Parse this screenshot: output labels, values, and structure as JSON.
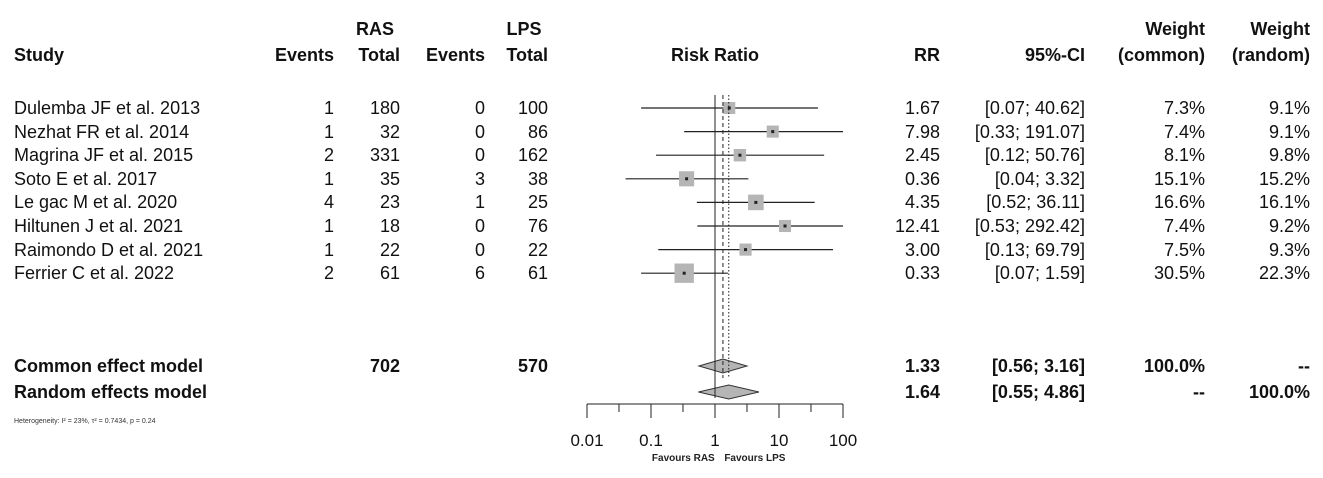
{
  "header": {
    "study": "Study",
    "ras_group": "RAS",
    "lps_group": "LPS",
    "events_label": "Events",
    "total_label": "Total",
    "risk_ratio": "Risk Ratio",
    "rr": "RR",
    "ci": "95%-CI",
    "weight": "Weight",
    "common": "(common)",
    "random": "(random)"
  },
  "chart_data": {
    "type": "forest",
    "xscale": "log",
    "xlim": [
      0.01,
      100
    ],
    "xticks": [
      0.01,
      0.1,
      1,
      10,
      100
    ],
    "xtick_labels": [
      "0.01",
      "0.1",
      "1",
      "10",
      "100"
    ],
    "x_favours_left": "Favours RAS",
    "x_favours_right": "Favours LPS",
    "reference_line": 1,
    "studies": [
      {
        "name": "Dulemba JF et al. 2013",
        "ras_events": "1",
        "ras_total": "180",
        "lps_events": "0",
        "lps_total": "100",
        "rr": 1.67,
        "lo": 0.07,
        "hi": 40.62,
        "rr_text": "1.67",
        "ci_text": "[0.07; 40.62]",
        "w_common": "7.3%",
        "w_random": "9.1%",
        "weight": 7.3
      },
      {
        "name": "Nezhat FR et al. 2014",
        "ras_events": "1",
        "ras_total": "32",
        "lps_events": "0",
        "lps_total": "86",
        "rr": 7.98,
        "lo": 0.33,
        "hi": 191.07,
        "rr_text": "7.98",
        "ci_text": "[0.33; 191.07]",
        "w_common": "7.4%",
        "w_random": "9.1%",
        "weight": 7.4
      },
      {
        "name": "Magrina JF et al. 2015",
        "ras_events": "2",
        "ras_total": "331",
        "lps_events": "0",
        "lps_total": "162",
        "rr": 2.45,
        "lo": 0.12,
        "hi": 50.76,
        "rr_text": "2.45",
        "ci_text": "[0.12; 50.76]",
        "w_common": "8.1%",
        "w_random": "9.8%",
        "weight": 8.1
      },
      {
        "name": "Soto E et al. 2017",
        "ras_events": "1",
        "ras_total": "35",
        "lps_events": "3",
        "lps_total": "38",
        "rr": 0.36,
        "lo": 0.04,
        "hi": 3.32,
        "rr_text": "0.36",
        "ci_text": "[0.04; 3.32]",
        "w_common": "15.1%",
        "w_random": "15.2%",
        "weight": 15.1
      },
      {
        "name": "Le gac M et al. 2020",
        "ras_events": "4",
        "ras_total": "23",
        "lps_events": "1",
        "lps_total": "25",
        "rr": 4.35,
        "lo": 0.52,
        "hi": 36.11,
        "rr_text": "4.35",
        "ci_text": "[0.52; 36.11]",
        "w_common": "16.6%",
        "w_random": "16.1%",
        "weight": 16.6
      },
      {
        "name": "Hiltunen J et al. 2021",
        "ras_events": "1",
        "ras_total": "18",
        "lps_events": "0",
        "lps_total": "76",
        "rr": 12.41,
        "lo": 0.53,
        "hi": 292.42,
        "rr_text": "12.41",
        "ci_text": "[0.53; 292.42]",
        "w_common": "7.4%",
        "w_random": "9.2%",
        "weight": 7.4
      },
      {
        "name": "Raimondo D et al. 2021",
        "ras_events": "1",
        "ras_total": "22",
        "lps_events": "0",
        "lps_total": "22",
        "rr": 3.0,
        "lo": 0.13,
        "hi": 69.79,
        "rr_text": "3.00",
        "ci_text": "[0.13; 69.79]",
        "w_common": "7.5%",
        "w_random": "9.3%",
        "weight": 7.5
      },
      {
        "name": "Ferrier C et al. 2022",
        "ras_events": "2",
        "ras_total": "61",
        "lps_events": "6",
        "lps_total": "61",
        "rr": 0.33,
        "lo": 0.07,
        "hi": 1.59,
        "rr_text": "0.33",
        "ci_text": "[0.07; 1.59]",
        "w_common": "30.5%",
        "w_random": "22.3%",
        "weight": 30.5
      }
    ],
    "summaries": [
      {
        "name": "Common effect model",
        "ras_total": "702",
        "lps_total": "570",
        "rr": 1.33,
        "lo": 0.56,
        "hi": 3.16,
        "rr_text": "1.33",
        "ci_text": "[0.56; 3.16]",
        "w_common": "100.0%",
        "w_random": "--"
      },
      {
        "name": "Random effects model",
        "ras_total": "",
        "lps_total": "",
        "rr": 1.64,
        "lo": 0.55,
        "hi": 4.86,
        "rr_text": "1.64",
        "ci_text": "[0.55; 4.86]",
        "w_common": "--",
        "w_random": "100.0%"
      }
    ],
    "heterogeneity": "Heterogeneity: I² = 23%, τ² = 0.7434, p = 0.24"
  }
}
